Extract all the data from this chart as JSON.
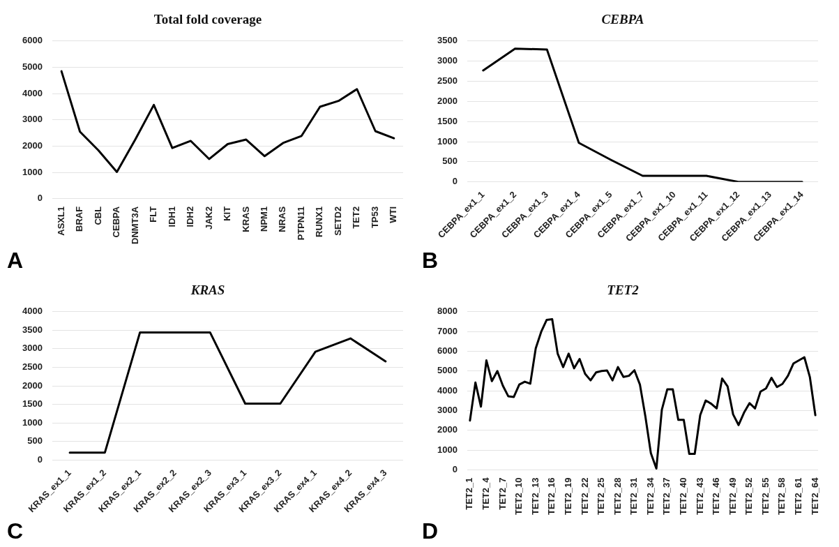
{
  "chart_data": [
    {
      "type": "line",
      "title": "Total fold coverage",
      "categories": [
        "ASXL1",
        "BRAF",
        "CBL",
        "CEBPA",
        "DNMT3A",
        "FLT",
        "IDH1",
        "IDH2",
        "JAK2",
        "KIT",
        "KRAS",
        "NPM1",
        "NRAS",
        "PTPN11",
        "RUNX1",
        "SETD2",
        "TET2",
        "TP53",
        "WTI"
      ],
      "series": [
        {
          "color": "#000000",
          "values": [
            4850,
            2550,
            1840,
            1020,
            2260,
            3570,
            1930,
            2200,
            1510,
            2080,
            2250,
            1620,
            2120,
            2390,
            3500,
            3720,
            4170,
            2570,
            2300
          ]
        }
      ],
      "ylim": [
        0,
        6000
      ],
      "yticks": [
        0,
        1000,
        2000,
        3000,
        4000,
        5000,
        6000
      ],
      "grid": "y",
      "legend": false,
      "marker": "none",
      "line_style": "solid",
      "annotations": [
        "A"
      ]
    },
    {
      "type": "line",
      "title": "CEBPA",
      "categories": [
        "CEBPA_ex1_1",
        "CEBPA_ex1_2",
        "CEBPA_ex1_3",
        "CEBPA_ex1_4",
        "CEBPA_ex1_5",
        "CEBPA_ex1_7",
        "CEBPA_ex1_10",
        "CEBPA_ex1_11",
        "CEBPA_ex1_12",
        "CEBPA_ex1_13",
        "CEBPA_ex1_14"
      ],
      "series": [
        {
          "color": "#000000",
          "values": [
            2770,
            3310,
            3290,
            970,
            550,
            150,
            150,
            150,
            0,
            0,
            0
          ]
        }
      ],
      "ylim": [
        0,
        3500
      ],
      "yticks": [
        0,
        500,
        1000,
        1500,
        2000,
        2500,
        3000,
        3500
      ],
      "grid": "y",
      "legend": false,
      "marker": "none",
      "line_style": "solid",
      "annotations": [
        "B"
      ]
    },
    {
      "type": "line",
      "title": "KRAS",
      "categories": [
        "KRAS_ex1_1",
        "KRAS_ex1_2",
        "KRAS_ex2_1",
        "KRAS_ex2_2",
        "KRAS_ex2_3",
        "KRAS_ex3_1",
        "KRAS_ex3_2",
        "KRAS_ex4_1",
        "KRAS_ex4_2",
        "KRAS_ex4_3"
      ],
      "series": [
        {
          "color": "#000000",
          "values": [
            200,
            200,
            3440,
            3440,
            3440,
            1520,
            1520,
            2920,
            3280,
            2660
          ]
        }
      ],
      "ylim": [
        0,
        4000
      ],
      "yticks": [
        0,
        500,
        1000,
        1500,
        2000,
        2500,
        3000,
        3500,
        4000
      ],
      "grid": "y",
      "legend": false,
      "marker": "none",
      "line_style": "solid",
      "annotations": [
        "C"
      ]
    },
    {
      "type": "line",
      "title": "TET2",
      "categories": [
        "TET2_1",
        null,
        null,
        "TET2_4",
        null,
        null,
        "TET2_7",
        null,
        null,
        "TET2_10",
        null,
        null,
        "TET2_13",
        null,
        null,
        "TET2_16",
        null,
        null,
        "TET2_19",
        null,
        null,
        "TET2_22",
        null,
        null,
        "TET2_25",
        null,
        null,
        "TET2_28",
        null,
        null,
        "TET2_31",
        null,
        null,
        "TET2_34",
        null,
        null,
        "TET2_37",
        null,
        null,
        "TET2_40",
        null,
        null,
        "TET2_43",
        null,
        null,
        "TET2_46",
        null,
        null,
        "TET2_49",
        null,
        null,
        "TET2_52",
        null,
        null,
        "TET2_55",
        null,
        null,
        "TET2_58",
        null,
        null,
        "TET2_61",
        null,
        null,
        "TET2_64"
      ],
      "series": [
        {
          "color": "#000000",
          "values": [
            2500,
            4420,
            3200,
            5540,
            4490,
            5000,
            4260,
            3720,
            3690,
            4320,
            4460,
            4360,
            6150,
            6990,
            7590,
            7620,
            5880,
            5200,
            5880,
            5140,
            5610,
            4860,
            4530,
            4930,
            5000,
            5030,
            4530,
            5200,
            4700,
            4760,
            5040,
            4320,
            2700,
            850,
            70,
            3040,
            4080,
            4080,
            2530,
            2530,
            810,
            810,
            2770,
            3510,
            3350,
            3110,
            4620,
            4220,
            2810,
            2270,
            2900,
            3380,
            3110,
            3960,
            4120,
            4660,
            4190,
            4350,
            4760,
            5380,
            5540,
            5700,
            4700,
            2770
          ]
        }
      ],
      "ylim": [
        0,
        8000
      ],
      "yticks": [
        0,
        1000,
        2000,
        3000,
        4000,
        5000,
        6000,
        7000,
        8000
      ],
      "grid": "y",
      "legend": false,
      "marker": "none",
      "line_style": "solid",
      "annotations": [
        "D"
      ]
    }
  ]
}
